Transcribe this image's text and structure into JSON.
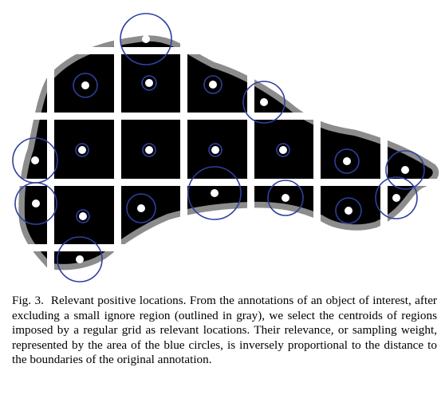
{
  "figure": {
    "label": "Fig. 3.",
    "caption": "Relevant positive locations. From the annotations of an object of interest, after excluding a small ignore region (outlined in gray), we select the centroids of regions imposed by a regular grid as relevant locations. Their relevance, or sampling weight, represented by the area of the blue circles, is inversely proportional to the distance to the boundaries of the original annotation.",
    "colors": {
      "object_fill": "#000000",
      "ignore_region": "#8c8c8c",
      "grid_lines": "#ffffff",
      "circles": "#2f3f9e",
      "centroids": "#ffffff"
    }
  }
}
